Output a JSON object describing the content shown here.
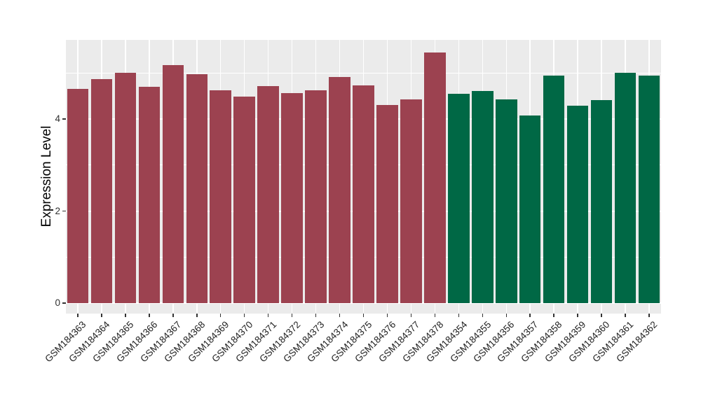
{
  "chart_data": {
    "type": "bar",
    "title": "",
    "xlabel": "",
    "ylabel": "Expression Level",
    "categories": [
      "GSM184363",
      "GSM184364",
      "GSM184365",
      "GSM184366",
      "GSM184367",
      "GSM184368",
      "GSM184369",
      "GSM184370",
      "GSM184371",
      "GSM184372",
      "GSM184373",
      "GSM184374",
      "GSM184375",
      "GSM184376",
      "GSM184377",
      "GSM184378",
      "GSM184354",
      "GSM184355",
      "GSM184356",
      "GSM184357",
      "GSM184358",
      "GSM184359",
      "GSM184360",
      "GSM184361",
      "GSM184362"
    ],
    "values": [
      4.65,
      4.86,
      5.0,
      4.7,
      5.17,
      4.97,
      4.62,
      4.48,
      4.71,
      4.57,
      4.62,
      4.91,
      4.73,
      4.3,
      4.43,
      5.45,
      4.55,
      4.61,
      4.42,
      4.08,
      4.94,
      4.29,
      4.41,
      5.01,
      4.94
    ],
    "bar_colors": [
      "#9C4250",
      "#9C4250",
      "#9C4250",
      "#9C4250",
      "#9C4250",
      "#9C4250",
      "#9C4250",
      "#9C4250",
      "#9C4250",
      "#9C4250",
      "#9C4250",
      "#9C4250",
      "#9C4250",
      "#9C4250",
      "#9C4250",
      "#9C4250",
      "#006845",
      "#006845",
      "#006845",
      "#006845",
      "#006845",
      "#006845",
      "#006845",
      "#006845",
      "#006845"
    ],
    "y_tick_labels": [
      "0",
      "2",
      "4"
    ],
    "y_ticks": [
      0,
      2,
      4
    ],
    "y_minor_ticks": [
      1,
      3,
      5
    ],
    "ylim": [
      -0.23,
      5.72
    ],
    "grid": true,
    "legend_position": "none",
    "colors": {
      "panel_background": "#EBEBEB",
      "gridline": "#FFFFFF",
      "group1_bar": "#9C4250",
      "group2_bar": "#006845",
      "tick_mark": "#333333",
      "tick_label_text": "#222222",
      "axis_title_text": "#000000",
      "figure_background": "#FFFFFF"
    }
  }
}
